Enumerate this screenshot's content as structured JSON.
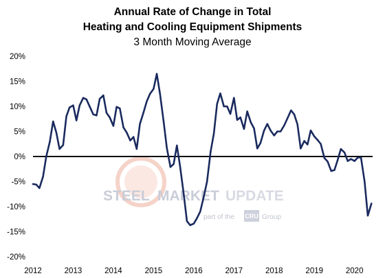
{
  "chart_data": {
    "type": "line",
    "title": "Annual Rate of Change in Total",
    "title_line2": "Heating and Cooling Equipment Shipments",
    "subtitle": "3 Month Moving Average",
    "xlabel": "",
    "ylabel": "",
    "x_ticks": [
      "2012",
      "2013",
      "2014",
      "2015",
      "2016",
      "2017",
      "2018",
      "2019",
      "2020"
    ],
    "y_ticks": [
      "20%",
      "15%",
      "10%",
      "5%",
      "0%",
      "-5%",
      "-10%",
      "-15%",
      "-20%"
    ],
    "ylim": [
      -20,
      20
    ],
    "xlim": [
      2012.0,
      2020.45
    ],
    "grid": false,
    "zero_line": true,
    "line_color": "#1a2a5e",
    "series": [
      {
        "x": [
          2012.0,
          2012.08,
          2012.16,
          2012.25,
          2012.33,
          2012.42,
          2012.5,
          2012.58,
          2012.66,
          2012.75,
          2012.83,
          2012.91,
          2013.0,
          2013.08,
          2013.16,
          2013.25,
          2013.33,
          2013.42,
          2013.5,
          2013.58,
          2013.66,
          2013.75,
          2013.83,
          2013.91,
          2014.0,
          2014.08,
          2014.16,
          2014.25,
          2014.33,
          2014.42,
          2014.5,
          2014.58,
          2014.66,
          2014.75,
          2014.83,
          2014.91,
          2015.0,
          2015.08,
          2015.16,
          2015.25,
          2015.33,
          2015.42,
          2015.5,
          2015.58,
          2015.66,
          2015.75,
          2015.83,
          2015.91,
          2016.0,
          2016.08,
          2016.16,
          2016.25,
          2016.33,
          2016.42,
          2016.5,
          2016.58,
          2016.66,
          2016.75,
          2016.83,
          2016.91,
          2017.0,
          2017.08,
          2017.16,
          2017.25,
          2017.33,
          2017.42,
          2017.5,
          2017.58,
          2017.66,
          2017.75,
          2017.83,
          2017.91,
          2018.0,
          2018.08,
          2018.16,
          2018.25,
          2018.33,
          2018.42,
          2018.5,
          2018.58,
          2018.66,
          2018.75,
          2018.83,
          2018.91,
          2019.0,
          2019.08,
          2019.16,
          2019.25,
          2019.33,
          2019.42,
          2019.5,
          2019.58,
          2019.66,
          2019.75,
          2019.83,
          2019.91,
          2020.0,
          2020.08,
          2020.16,
          2020.25,
          2020.33,
          2020.42
        ],
        "y": [
          -5.5,
          -5.6,
          -6.3,
          -4.0,
          0.0,
          3.0,
          7.0,
          4.8,
          1.5,
          2.3,
          8.0,
          9.8,
          10.2,
          7.2,
          10.2,
          11.7,
          11.4,
          9.8,
          8.4,
          8.2,
          11.5,
          12.2,
          8.7,
          7.8,
          6.1,
          9.9,
          9.6,
          5.8,
          4.8,
          3.2,
          3.9,
          1.5,
          6.5,
          8.8,
          11.0,
          12.5,
          13.5,
          16.5,
          12.5,
          7.0,
          1.7,
          -2.1,
          -1.5,
          2.2,
          -2.0,
          -7.5,
          -12.9,
          -13.7,
          -13.4,
          -12.3,
          -11.0,
          -8.0,
          -5.0,
          1.0,
          4.6,
          10.5,
          12.6,
          10.0,
          10.0,
          8.5,
          11.7,
          7.3,
          7.8,
          5.5,
          9.0,
          6.8,
          5.6,
          1.6,
          2.7,
          5.2,
          6.5,
          5.2,
          4.2,
          5.0,
          5.0,
          6.2,
          7.6,
          9.2,
          8.4,
          6.4,
          1.6,
          3.1,
          2.4,
          5.2,
          4.0,
          3.3,
          2.5,
          -0.3,
          -1.0,
          -2.9,
          -2.7,
          -0.7,
          1.5,
          0.8,
          -0.9,
          -0.5,
          -0.9,
          -0.2,
          -0.2,
          -5.0,
          -11.8,
          -9.4
        ]
      }
    ]
  },
  "watermark": {
    "brand": "STEEL MARKET UPDATE",
    "brand_part1": "STEEL",
    "brand_part2": "MARKET",
    "brand_part3": "UPDATE",
    "tagline_pre": "part of the",
    "tagline_logo": "CRU",
    "tagline_post": "Group",
    "brand_color": "#c8cbd6",
    "accent_color": "#f2b8a6"
  }
}
